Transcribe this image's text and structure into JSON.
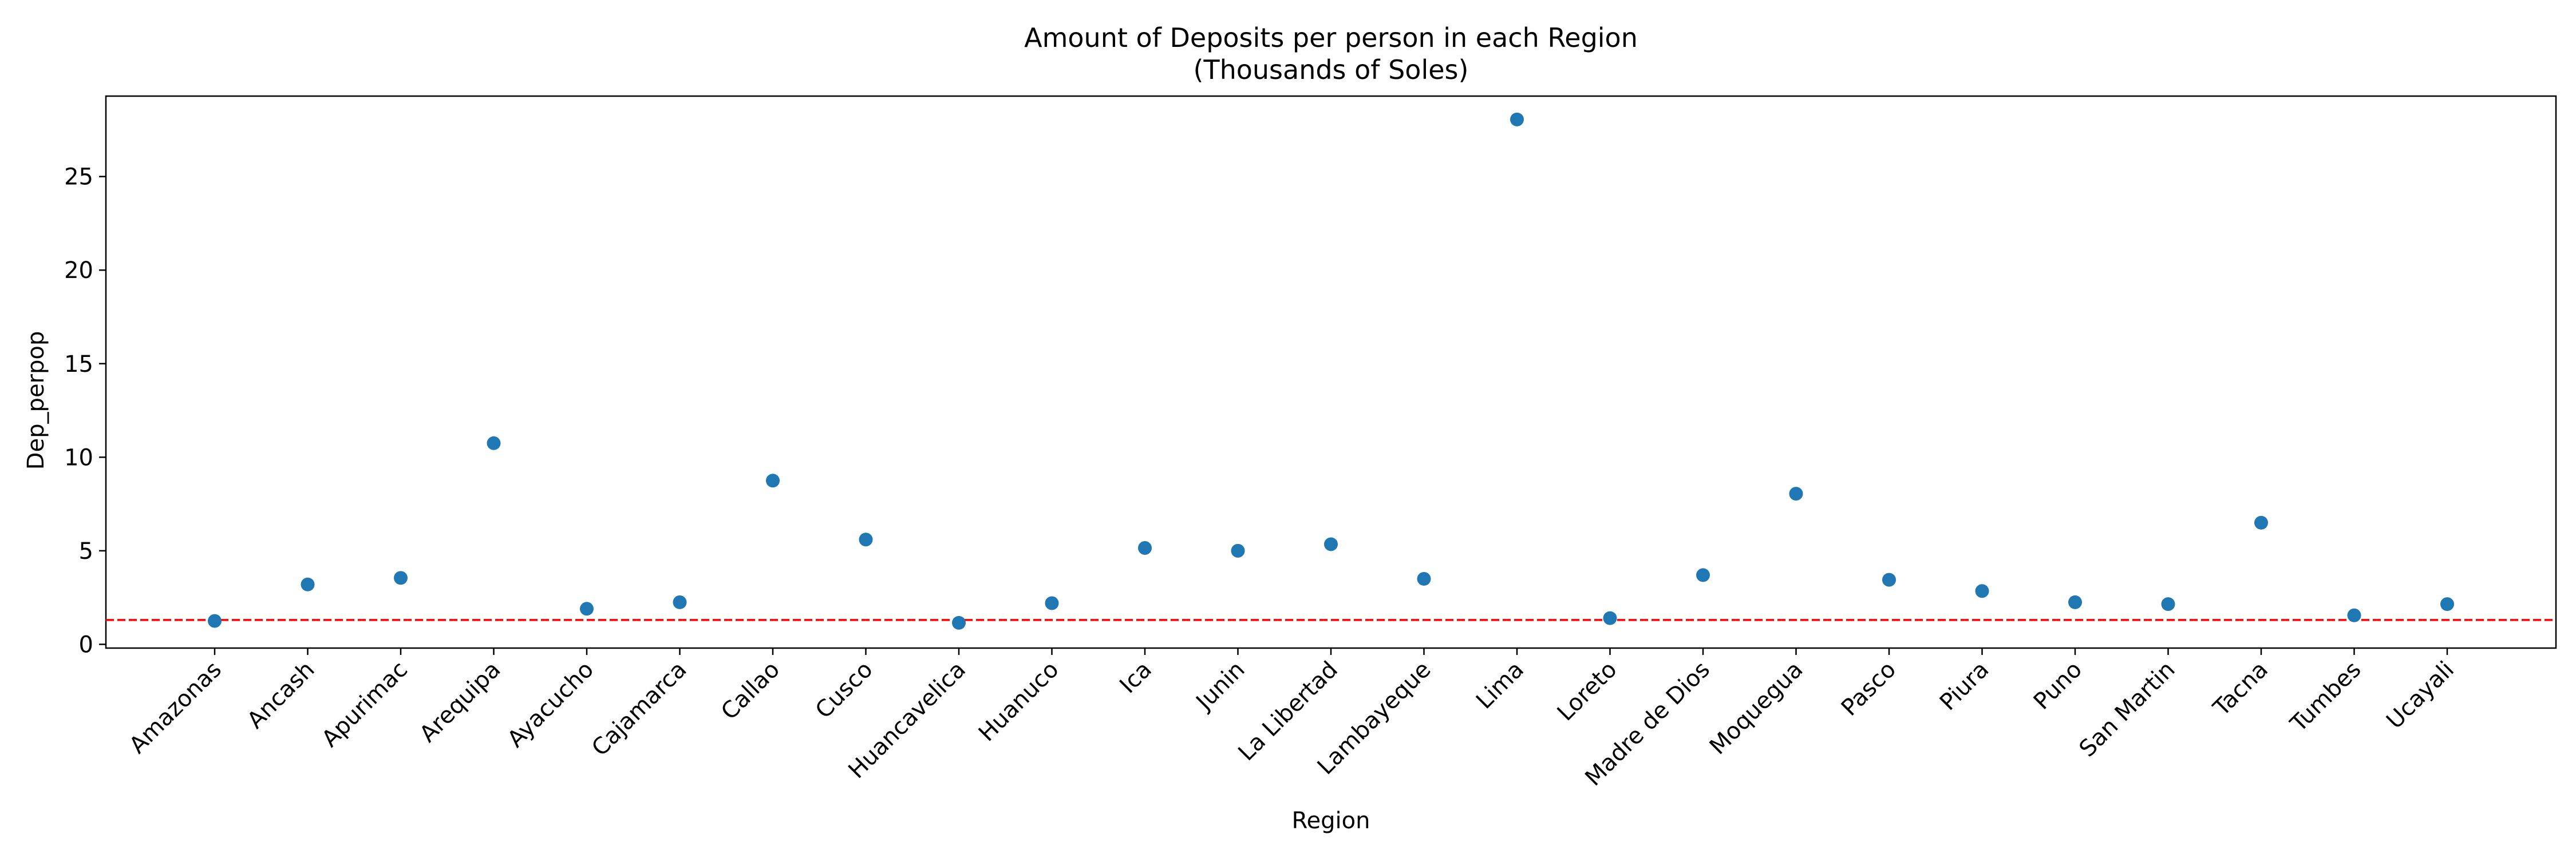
{
  "chart_data": {
    "type": "scatter",
    "title_line1": "Amount of Deposits per person in each Region",
    "title_line2": "(Thousands of Soles)",
    "xlabel": "Region",
    "ylabel": "Dep_perpop",
    "ylim": [
      -0.2,
      29.3
    ],
    "yticks": [
      0,
      5,
      10,
      15,
      20,
      25
    ],
    "grid": false,
    "categories": [
      "Amazonas",
      "Ancash",
      "Apurimac",
      "Arequipa",
      "Ayacucho",
      "Cajamarca",
      "Callao",
      "Cusco",
      "Huancavelica",
      "Huanuco",
      "Ica",
      "Junin",
      "La Libertad",
      "Lambayeque",
      "Lima",
      "Loreto",
      "Madre de Dios",
      "Moquegua",
      "Pasco",
      "Piura",
      "Puno",
      "San Martin",
      "Tacna",
      "Tumbes",
      "Ucayali"
    ],
    "values": [
      1.25,
      3.2,
      3.55,
      10.75,
      1.9,
      2.25,
      8.75,
      5.6,
      1.15,
      2.2,
      5.15,
      5.0,
      5.35,
      3.5,
      28.05,
      1.4,
      3.7,
      8.05,
      3.45,
      2.85,
      2.25,
      2.15,
      6.5,
      1.55,
      2.15
    ],
    "reference_line": {
      "y": 1.3,
      "style": "dashed",
      "color": "#ff0000"
    },
    "marker_color": "#1f77b4"
  }
}
